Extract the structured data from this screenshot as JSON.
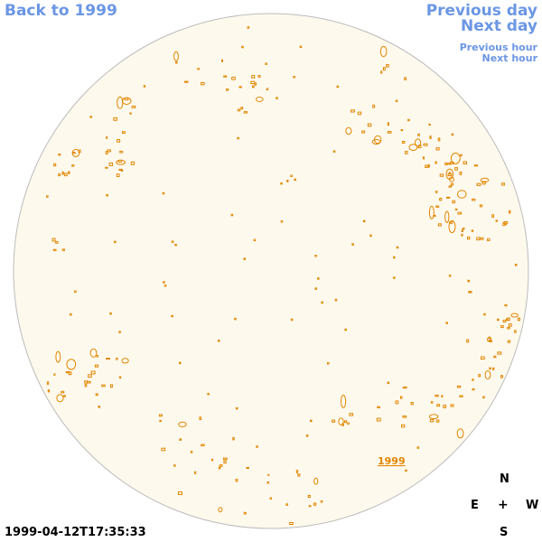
{
  "nav": {
    "back": "Back to 1999",
    "prev_day": "Previous day",
    "next_day": "Next day",
    "prev_hour": "Previous hour",
    "next_hour": "Next hour"
  },
  "year_label": "1999",
  "compass": {
    "n": "N",
    "e": "E",
    "center": "+",
    "w": "W",
    "s": "S"
  },
  "timestamp": "1999-04-12T17:35:33",
  "colors": {
    "link": "#6b96e4",
    "disk_fill": "#fef9ed",
    "disk_stroke": "#bbbbbb",
    "contour": "#e08600"
  }
}
